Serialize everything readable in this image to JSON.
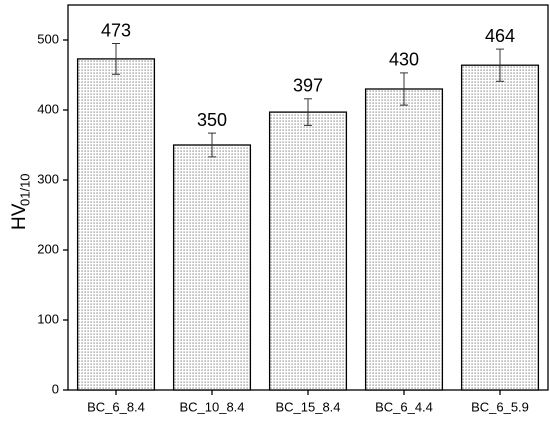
{
  "chart_data": {
    "type": "bar",
    "y_label": "HV",
    "y_label_sub": "01/10",
    "categories": [
      "BC_6_8.4",
      "BC_10_8.4",
      "BC_15_8.4",
      "BC_6_4.4",
      "BC_6_5.9"
    ],
    "values": [
      473,
      350,
      397,
      430,
      464
    ],
    "errors": [
      22,
      17,
      19,
      23,
      23
    ],
    "color": "#7a7a7a",
    "ylim": [
      0,
      550
    ],
    "yticks": [
      0,
      100,
      200,
      300,
      400,
      500
    ]
  }
}
